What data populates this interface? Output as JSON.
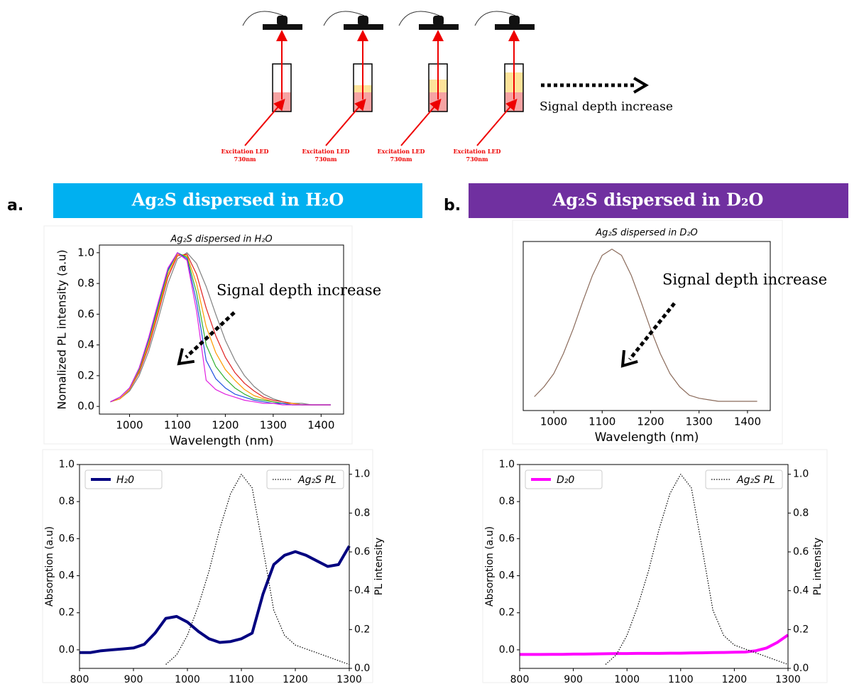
{
  "diagram": {
    "excitation_labels": [
      [
        "Excitation LED",
        "730nm"
      ],
      [
        "Excitation LED",
        "730nm"
      ],
      [
        "Excitation LED",
        "730nm"
      ],
      [
        "Excitation LED",
        "730nm"
      ]
    ],
    "arrow_label": "Signal depth increase"
  },
  "panels": [
    {
      "letter": "a.",
      "banner": "Ag₂S dispersed in H₂O",
      "color": "#00b0f0"
    },
    {
      "letter": "b.",
      "banner": "Ag₂S dispersed in D₂O",
      "color": "#7030a0"
    }
  ],
  "chart_data": [
    {
      "type": "line",
      "title": "Ag₂S dispersed in H₂O",
      "xlabel": "Wavelength (nm)",
      "ylabel": "Nomalized PL intensity (a.u)",
      "annotation": "Signal depth increase",
      "x": [
        960,
        980,
        1000,
        1020,
        1040,
        1060,
        1080,
        1100,
        1120,
        1140,
        1160,
        1180,
        1200,
        1220,
        1240,
        1260,
        1280,
        1300,
        1320,
        1340,
        1360,
        1380,
        1400,
        1420
      ],
      "xlim": [
        937,
        1447
      ],
      "xticks": [
        1000,
        1100,
        1200,
        1300,
        1400
      ],
      "ylim": [
        -0.05,
        1.05
      ],
      "yticks": [
        {
          "value": 0,
          "label": "0.0"
        },
        {
          "value": 0.2,
          "label": "0.2"
        },
        {
          "value": 0.4,
          "label": "0.4"
        },
        {
          "value": 0.6,
          "label": "0.6"
        },
        {
          "value": 0.8,
          "label": "0.8"
        },
        {
          "value": 1,
          "label": "1.0"
        }
      ],
      "series": [
        {
          "color": "#808080",
          "values": [
            0.03,
            0.05,
            0.1,
            0.2,
            0.36,
            0.57,
            0.8,
            0.96,
            1.0,
            0.93,
            0.78,
            0.6,
            0.43,
            0.3,
            0.2,
            0.13,
            0.08,
            0.05,
            0.03,
            0.02,
            0.02,
            0.01,
            0.01,
            0.01
          ]
        },
        {
          "color": "#e02020",
          "values": [
            0.03,
            0.05,
            0.11,
            0.22,
            0.39,
            0.61,
            0.84,
            0.98,
            0.99,
            0.86,
            0.64,
            0.46,
            0.32,
            0.22,
            0.15,
            0.1,
            0.06,
            0.04,
            0.03,
            0.02,
            0.01,
            0.01,
            0.01,
            0.01
          ]
        },
        {
          "color": "#ff9900",
          "values": [
            0.03,
            0.05,
            0.11,
            0.23,
            0.41,
            0.63,
            0.86,
            0.99,
            0.98,
            0.8,
            0.52,
            0.35,
            0.24,
            0.17,
            0.11,
            0.07,
            0.05,
            0.03,
            0.02,
            0.02,
            0.01,
            0.01,
            0.01,
            0.01
          ]
        },
        {
          "color": "#30b030",
          "values": [
            0.03,
            0.06,
            0.12,
            0.24,
            0.43,
            0.65,
            0.88,
            1.0,
            0.97,
            0.74,
            0.4,
            0.26,
            0.18,
            0.12,
            0.08,
            0.05,
            0.04,
            0.03,
            0.02,
            0.01,
            0.01,
            0.01,
            0.01,
            0.01
          ]
        },
        {
          "color": "#2050e0",
          "values": [
            0.03,
            0.06,
            0.12,
            0.25,
            0.44,
            0.67,
            0.89,
            1.0,
            0.96,
            0.68,
            0.3,
            0.18,
            0.12,
            0.08,
            0.06,
            0.04,
            0.03,
            0.02,
            0.02,
            0.01,
            0.01,
            0.01,
            0.01,
            0.01
          ]
        },
        {
          "color": "#e020e0",
          "values": [
            0.03,
            0.06,
            0.12,
            0.25,
            0.45,
            0.68,
            0.9,
            1.0,
            0.95,
            0.62,
            0.17,
            0.11,
            0.08,
            0.06,
            0.04,
            0.03,
            0.02,
            0.02,
            0.01,
            0.01,
            0.01,
            0.01,
            0.01,
            0.01
          ]
        }
      ]
    },
    {
      "type": "line",
      "title": "Ag₂S dispersed in D₂O",
      "xlabel": "Wavelength (nm)",
      "annotation": "Signal depth increase",
      "x": [
        960,
        980,
        1000,
        1020,
        1040,
        1060,
        1080,
        1100,
        1120,
        1140,
        1160,
        1180,
        1200,
        1220,
        1240,
        1260,
        1280,
        1300,
        1320,
        1340,
        1360,
        1380,
        1400,
        1420
      ],
      "xlim": [
        937,
        1447
      ],
      "xticks": [
        1000,
        1100,
        1200,
        1300,
        1400
      ],
      "ylim": [
        -0.05,
        1.05
      ],
      "series": [
        {
          "color": "#8a6a5a",
          "values": [
            0.04,
            0.105,
            0.19,
            0.32,
            0.48,
            0.66,
            0.83,
            0.96,
            1.0,
            0.96,
            0.83,
            0.66,
            0.48,
            0.32,
            0.19,
            0.105,
            0.05,
            0.03,
            0.02,
            0.01,
            0.01,
            0.01,
            0.01,
            0.01
          ]
        }
      ]
    },
    {
      "type": "line",
      "xlabel": "Wavelength(nm)",
      "ylabel": "Absorption (a.u)",
      "y2label": "PL intensity",
      "x": [
        800,
        820,
        840,
        860,
        880,
        900,
        920,
        940,
        960,
        980,
        1000,
        1020,
        1040,
        1060,
        1080,
        1100,
        1120,
        1140,
        1160,
        1180,
        1200,
        1220,
        1240,
        1260,
        1280,
        1300
      ],
      "xlim": [
        800,
        1300
      ],
      "xticks": [
        800,
        900,
        1000,
        1100,
        1200,
        1300
      ],
      "ylim": [
        -0.1,
        1.0
      ],
      "yticks": [
        {
          "value": 0,
          "label": "0.0"
        },
        {
          "value": 0.2,
          "label": "0.2"
        },
        {
          "value": 0.4,
          "label": "0.4"
        },
        {
          "value": 0.6,
          "label": "0.6"
        },
        {
          "value": 0.8,
          "label": "0.8"
        },
        {
          "value": 1,
          "label": "1.0"
        }
      ],
      "y2lim": [
        0,
        1.05
      ],
      "y2ticks": [
        {
          "value": 0,
          "label": "0.0"
        },
        {
          "value": 0.2,
          "label": "0.2"
        },
        {
          "value": 0.4,
          "label": "0.4"
        },
        {
          "value": 0.6,
          "label": "0.6"
        },
        {
          "value": 0.8,
          "label": "0.8"
        },
        {
          "value": 1,
          "label": "1.0"
        }
      ],
      "series": [
        {
          "name": "H₂0",
          "color": "#000080",
          "linewidth": 4,
          "legend": "upper left",
          "values": [
            -0.015,
            -0.015,
            -0.005,
            0.0,
            0.005,
            0.01,
            0.03,
            0.09,
            0.17,
            0.18,
            0.15,
            0.1,
            0.06,
            0.04,
            0.045,
            0.06,
            0.09,
            0.3,
            0.46,
            0.51,
            0.53,
            0.51,
            0.48,
            0.45,
            0.46,
            0.56
          ]
        },
        {
          "name": "Ag₂S PL",
          "color": "#000000",
          "linewidth": 1.2,
          "linestyle": "dotted",
          "axis": "y2",
          "legend": "upper right",
          "values": [
            null,
            null,
            null,
            null,
            null,
            null,
            null,
            null,
            0.02,
            0.07,
            0.17,
            0.32,
            0.5,
            0.72,
            0.9,
            1.0,
            0.93,
            0.62,
            0.3,
            0.17,
            0.12,
            0.1,
            0.08,
            0.06,
            0.04,
            0.02
          ]
        }
      ]
    },
    {
      "type": "line",
      "xlabel": "Wavelength(nm)",
      "ylabel": "Absorption (a.u)",
      "y2label": "PL intensity",
      "x": [
        800,
        820,
        840,
        860,
        880,
        900,
        920,
        940,
        960,
        980,
        1000,
        1020,
        1040,
        1060,
        1080,
        1100,
        1120,
        1140,
        1160,
        1180,
        1200,
        1220,
        1240,
        1260,
        1280,
        1300
      ],
      "xlim": [
        800,
        1300
      ],
      "xticks": [
        800,
        900,
        1000,
        1100,
        1200,
        1300
      ],
      "ylim": [
        -0.1,
        1.0
      ],
      "yticks": [
        {
          "value": 0,
          "label": "0.0"
        },
        {
          "value": 0.2,
          "label": "0.2"
        },
        {
          "value": 0.4,
          "label": "0.4"
        },
        {
          "value": 0.6,
          "label": "0.6"
        },
        {
          "value": 0.8,
          "label": "0.8"
        },
        {
          "value": 1,
          "label": "1.0"
        }
      ],
      "y2lim": [
        0,
        1.05
      ],
      "y2ticks": [
        {
          "value": 0,
          "label": "0.0"
        },
        {
          "value": 0.2,
          "label": "0.2"
        },
        {
          "value": 0.4,
          "label": "0.4"
        },
        {
          "value": 0.6,
          "label": "0.6"
        },
        {
          "value": 0.8,
          "label": "0.8"
        },
        {
          "value": 1,
          "label": "1.0"
        }
      ],
      "series": [
        {
          "name": "D₂0",
          "color": "#ff00ff",
          "linewidth": 4,
          "legend": "upper left",
          "values": [
            -0.025,
            -0.025,
            -0.025,
            -0.024,
            -0.024,
            -0.023,
            -0.023,
            -0.022,
            -0.021,
            -0.02,
            -0.02,
            -0.019,
            -0.019,
            -0.019,
            -0.018,
            -0.018,
            -0.017,
            -0.016,
            -0.015,
            -0.014,
            -0.013,
            -0.012,
            -0.005,
            0.01,
            0.04,
            0.08
          ]
        },
        {
          "name": "Ag₂S PL",
          "color": "#000000",
          "linewidth": 1.2,
          "linestyle": "dotted",
          "axis": "y2",
          "legend": "upper right",
          "values": [
            null,
            null,
            null,
            null,
            null,
            null,
            null,
            null,
            0.02,
            0.07,
            0.17,
            0.32,
            0.5,
            0.72,
            0.9,
            1.0,
            0.93,
            0.62,
            0.3,
            0.17,
            0.12,
            0.1,
            0.08,
            0.06,
            0.04,
            0.02
          ]
        }
      ]
    }
  ]
}
